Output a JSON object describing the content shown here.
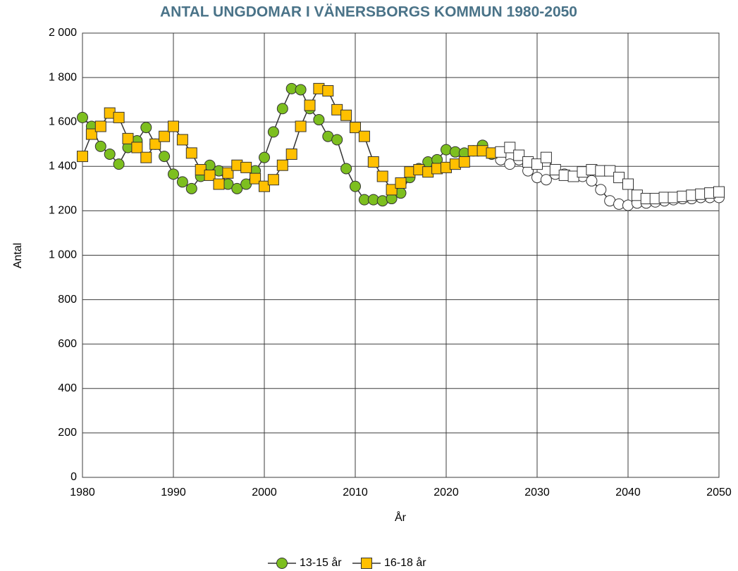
{
  "chart_data": {
    "type": "line",
    "title": "ANTAL UNGDOMAR I VÄNERSBORGS KOMMUN 1980-2050",
    "x_label": "År",
    "y_label": "Antal",
    "x": [
      1980,
      1981,
      1982,
      1983,
      1984,
      1985,
      1986,
      1987,
      1988,
      1989,
      1990,
      1991,
      1992,
      1993,
      1994,
      1995,
      1996,
      1997,
      1998,
      1999,
      2000,
      2001,
      2002,
      2003,
      2004,
      2005,
      2006,
      2007,
      2008,
      2009,
      2010,
      2011,
      2012,
      2013,
      2014,
      2015,
      2016,
      2017,
      2018,
      2019,
      2020,
      2021,
      2022,
      2023,
      2024,
      2025,
      2026,
      2027,
      2028,
      2029,
      2030,
      2031,
      2032,
      2033,
      2034,
      2035,
      2036,
      2037,
      2038,
      2039,
      2040,
      2041,
      2042,
      2043,
      2044,
      2045,
      2046,
      2047,
      2048,
      2049,
      2050
    ],
    "series": [
      {
        "name": "13-15 år",
        "color": "#7dbf1f",
        "marker": "circle",
        "values": [
          1620,
          1580,
          1490,
          1455,
          1410,
          1485,
          1515,
          1575,
          1500,
          1445,
          1365,
          1330,
          1300,
          1355,
          1405,
          1380,
          1320,
          1300,
          1320,
          1380,
          1440,
          1555,
          1660,
          1750,
          1745,
          1660,
          1610,
          1535,
          1520,
          1390,
          1310,
          1250,
          1250,
          1245,
          1255,
          1280,
          1350,
          1390,
          1420,
          1430,
          1475,
          1465,
          1460,
          1470,
          1495,
          1455,
          1430,
          1410,
          1430,
          1380,
          1350,
          1340,
          1365,
          1365,
          1355,
          1355,
          1335,
          1295,
          1245,
          1230,
          1225,
          1235,
          1235,
          1240,
          1245,
          1250,
          1255,
          1255,
          1260,
          1260,
          1260
        ]
      },
      {
        "name": "16-18 år",
        "color": "#ffc000",
        "marker": "square",
        "values": [
          1445,
          1545,
          1580,
          1640,
          1620,
          1525,
          1485,
          1440,
          1500,
          1535,
          1580,
          1520,
          1460,
          1385,
          1360,
          1320,
          1370,
          1405,
          1395,
          1345,
          1310,
          1340,
          1405,
          1455,
          1580,
          1675,
          1750,
          1740,
          1655,
          1630,
          1575,
          1535,
          1420,
          1355,
          1295,
          1325,
          1375,
          1385,
          1375,
          1390,
          1395,
          1410,
          1420,
          1470,
          1470,
          1460,
          1465,
          1485,
          1450,
          1420,
          1410,
          1440,
          1385,
          1360,
          1355,
          1375,
          1385,
          1380,
          1380,
          1350,
          1320,
          1270,
          1255,
          1255,
          1260,
          1260,
          1265,
          1270,
          1275,
          1280,
          1285
        ]
      }
    ],
    "hollow_from": 2026,
    "xlim": [
      1980,
      2050
    ],
    "xticks": [
      1980,
      1990,
      2000,
      2010,
      2020,
      2030,
      2040,
      2050
    ],
    "ylim": [
      0,
      2000
    ],
    "yticks": [
      0,
      200,
      400,
      600,
      800,
      {
        "value": 1000,
        "label": "1 000"
      },
      {
        "value": 1200,
        "label": "1 200"
      },
      {
        "value": 1400,
        "label": "1 400"
      },
      {
        "value": 1600,
        "label": "1 600"
      },
      {
        "value": 1800,
        "label": "1 800"
      },
      {
        "value": 2000,
        "label": "2 000"
      }
    ],
    "grid": true,
    "legend": "bottom"
  }
}
